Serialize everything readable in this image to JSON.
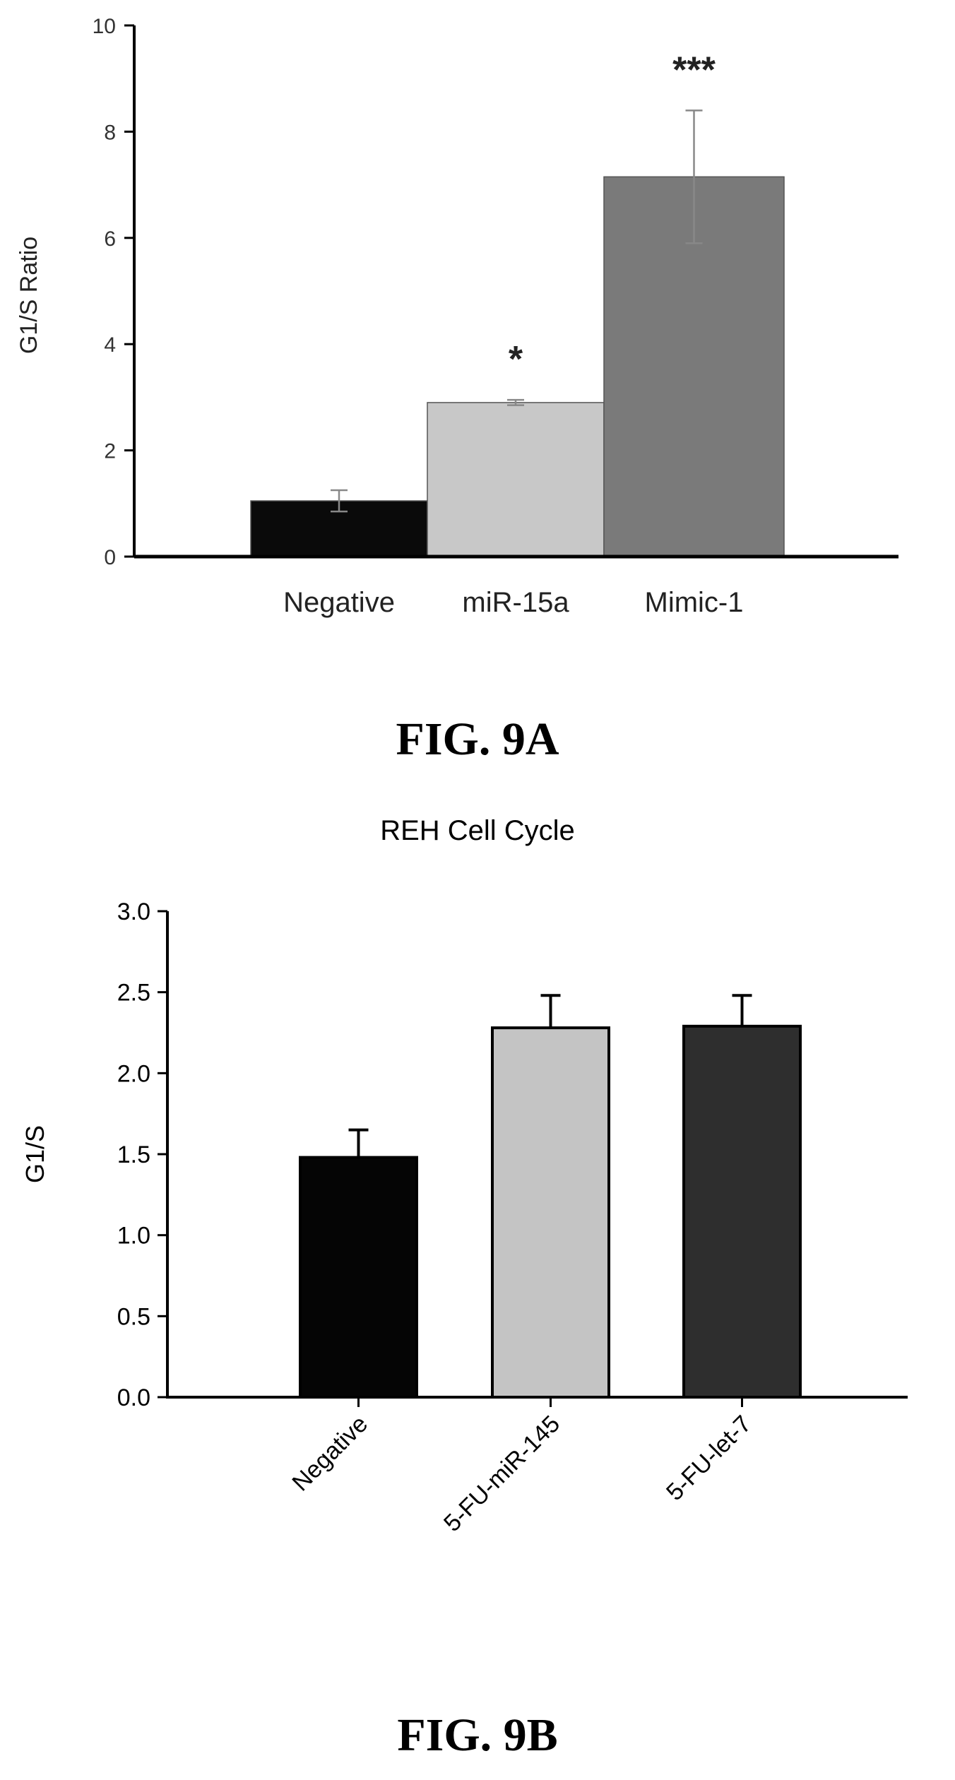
{
  "figures": [
    {
      "caption": "FIG. 9A"
    },
    {
      "caption": "FIG. 9B"
    }
  ],
  "chart_data": [
    {
      "type": "bar",
      "title": "",
      "xlabel": "",
      "ylabel": "G1/S Ratio",
      "ylim": [
        0,
        10
      ],
      "yticks": [
        "0",
        "2",
        "4",
        "6",
        "8",
        "10"
      ],
      "categories": [
        "Negative",
        "miR-15a",
        "Mimic-1"
      ],
      "values": [
        1.05,
        2.9,
        7.15
      ],
      "errors": [
        0.2,
        0.05,
        1.25
      ],
      "significance": [
        "",
        "*",
        "***"
      ],
      "colors": [
        "#0a0a0a",
        "#c8c8c8",
        "#7a7a7a"
      ],
      "grid": false,
      "legend": "none"
    },
    {
      "type": "bar",
      "title": "REH Cell Cycle",
      "xlabel": "",
      "ylabel": "G1/S",
      "ylim": [
        0,
        3.0
      ],
      "yticks": [
        "0.0",
        "0.5",
        "1.0",
        "1.5",
        "2.0",
        "2.5",
        "3.0"
      ],
      "categories": [
        "Negative",
        "5-FU-miR-145",
        "5-FU-let-7"
      ],
      "values": [
        1.48,
        2.28,
        2.29
      ],
      "errors": [
        0.17,
        0.2,
        0.19
      ],
      "colors": [
        "#050505",
        "#c4c4c4",
        "#2e2e2e"
      ],
      "grid": false,
      "legend": "none"
    }
  ]
}
